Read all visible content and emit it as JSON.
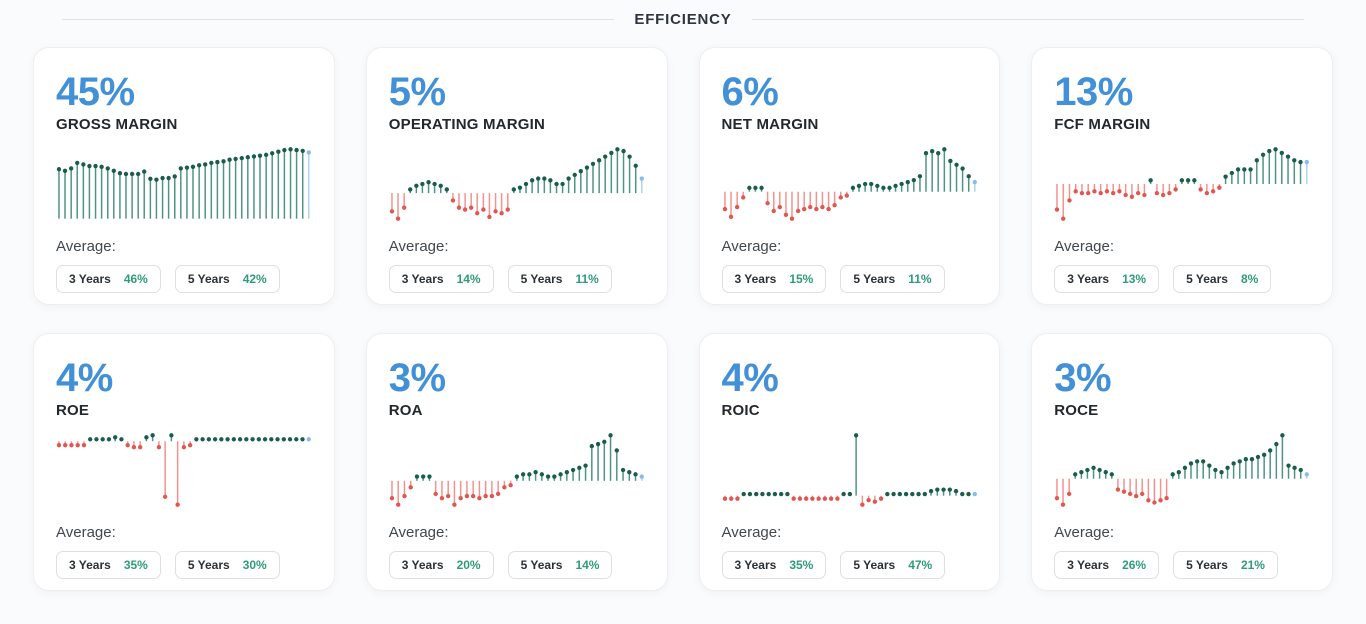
{
  "header": {
    "title": "EFFICIENCY"
  },
  "colors": {
    "accent_blue": "#4291d8",
    "positive_green": "#2e9d76",
    "negative_red": "#e25650",
    "latest_blue": "#85bdec",
    "spark": {
      "green": {
        "dot": "#1a5d4d",
        "stem": "#4f9383"
      },
      "red": {
        "dot": "#e25650",
        "stem": "#f2928e"
      },
      "blue": {
        "dot": "#85bdec",
        "stem": "#afd3f2"
      }
    }
  },
  "cards": [
    {
      "value": "45%",
      "label": "GROSS MARGIN",
      "average_label": "Average:",
      "averages": [
        {
          "label": "3 Years",
          "value": "46%"
        },
        {
          "label": "5 Years",
          "value": "42%"
        }
      ]
    },
    {
      "value": "5%",
      "label": "OPERATING MARGIN",
      "average_label": "Average:",
      "averages": [
        {
          "label": "3 Years",
          "value": "14%"
        },
        {
          "label": "5 Years",
          "value": "11%"
        }
      ]
    },
    {
      "value": "6%",
      "label": "NET MARGIN",
      "average_label": "Average:",
      "averages": [
        {
          "label": "3 Years",
          "value": "15%"
        },
        {
          "label": "5 Years",
          "value": "11%"
        }
      ]
    },
    {
      "value": "13%",
      "label": "FCF MARGIN",
      "average_label": "Average:",
      "averages": [
        {
          "label": "3 Years",
          "value": "13%"
        },
        {
          "label": "5 Years",
          "value": "8%"
        }
      ]
    },
    {
      "value": "4%",
      "label": "ROE",
      "average_label": "Average:",
      "averages": [
        {
          "label": "3 Years",
          "value": "35%"
        },
        {
          "label": "5 Years",
          "value": "30%"
        }
      ]
    },
    {
      "value": "3%",
      "label": "ROA",
      "average_label": "Average:",
      "averages": [
        {
          "label": "3 Years",
          "value": "20%"
        },
        {
          "label": "5 Years",
          "value": "14%"
        }
      ]
    },
    {
      "value": "4%",
      "label": "ROIC",
      "average_label": "Average:",
      "averages": [
        {
          "label": "3 Years",
          "value": "35%"
        },
        {
          "label": "5 Years",
          "value": "47%"
        }
      ]
    },
    {
      "value": "3%",
      "label": "ROCE",
      "average_label": "Average:",
      "averages": [
        {
          "label": "3 Years",
          "value": "26%"
        },
        {
          "label": "5 Years",
          "value": "21%"
        }
      ]
    }
  ],
  "chart_data": [
    {
      "type": "stem",
      "title": "GROSS MARGIN history (lollipop sparkline, latest point blue)",
      "values": [
        62,
        60,
        63,
        70,
        68,
        66,
        66,
        65,
        63,
        60,
        57,
        56,
        56,
        56,
        59,
        50,
        49,
        51,
        51,
        53,
        63,
        64,
        65,
        67,
        68,
        70,
        71,
        72,
        74,
        75,
        76,
        77,
        78,
        79,
        80,
        82,
        84,
        86,
        87,
        86,
        85,
        83
      ]
    },
    {
      "type": "stem",
      "title": "OPERATING MARGIN history (green positive, red negative, latest blue)",
      "values": [
        -10,
        -14,
        -8,
        2,
        4,
        5,
        6,
        5,
        4,
        2,
        -4,
        -8,
        -9,
        -8,
        -11,
        -9,
        -13,
        -10,
        -11,
        -9,
        2,
        3,
        5,
        7,
        8,
        8,
        7,
        5,
        5,
        8,
        10,
        12,
        14,
        16,
        18,
        20,
        22,
        24,
        23,
        20,
        15,
        8
      ]
    },
    {
      "type": "stem",
      "title": "NET MARGIN history (green positive, red negative, latest blue)",
      "values": [
        -9,
        -13,
        -8,
        -3,
        2,
        2,
        2,
        -6,
        -10,
        -8,
        -12,
        -14,
        -10,
        -9,
        -8,
        -9,
        -8,
        -9,
        -7,
        -3,
        -2,
        2,
        3,
        4,
        4,
        3,
        2,
        2,
        3,
        4,
        5,
        6,
        8,
        20,
        21,
        20,
        22,
        16,
        14,
        12,
        8,
        5
      ]
    },
    {
      "type": "stem",
      "title": "FCF MARGIN history (green positive, red negative, latest blue)",
      "values": [
        -14,
        -19,
        -9,
        -4,
        -5,
        -5,
        -4,
        -5,
        -4,
        -5,
        -4,
        -6,
        -7,
        -5,
        -6,
        2,
        -5,
        -6,
        -5,
        -3,
        2,
        2,
        2,
        -3,
        -5,
        -4,
        -2,
        4,
        6,
        8,
        8,
        8,
        13,
        16,
        18,
        19,
        17,
        15,
        13,
        12,
        12
      ]
    },
    {
      "type": "stem",
      "title": "ROE history (two deep negative spikes, latest blue)",
      "values": [
        -2,
        -2,
        -2,
        -2,
        -2,
        1,
        1,
        1,
        1,
        2,
        1,
        -2,
        -3,
        -3,
        2,
        3,
        -3,
        -28,
        3,
        -32,
        -3,
        -2,
        1,
        1,
        1,
        1,
        1,
        1,
        1,
        1,
        1,
        1,
        1,
        1,
        1,
        1,
        1,
        1,
        1,
        1,
        1
      ]
    },
    {
      "type": "stem",
      "title": "ROA history (green positive, red negative, latest blue)",
      "values": [
        -8,
        -11,
        -7,
        -3,
        2,
        2,
        2,
        -6,
        -8,
        -7,
        -11,
        -8,
        -7,
        -7,
        -8,
        -7,
        -7,
        -6,
        -3,
        -2,
        2,
        3,
        3,
        4,
        3,
        2,
        2,
        3,
        4,
        5,
        6,
        7,
        16,
        17,
        18,
        21,
        14,
        5,
        4,
        3,
        2
      ]
    },
    {
      "type": "stem",
      "title": "ROIC history (one tall positive spike, latest blue)",
      "values": [
        -2,
        -2,
        -2,
        1,
        1,
        1,
        1,
        1,
        1,
        1,
        1,
        -2,
        -2,
        -2,
        -2,
        -2,
        -2,
        -2,
        -2,
        1,
        1,
        40,
        -6,
        -3,
        -4,
        -2,
        1,
        1,
        1,
        1,
        1,
        1,
        1,
        3,
        4,
        4,
        4,
        3,
        1,
        1,
        1
      ]
    },
    {
      "type": "stem",
      "title": "ROCE history (green positive, red negative, latest blue)",
      "values": [
        -9,
        -12,
        -7,
        2,
        3,
        4,
        5,
        4,
        3,
        2,
        -5,
        -6,
        -7,
        -8,
        -7,
        -10,
        -11,
        -10,
        -9,
        2,
        3,
        5,
        7,
        8,
        8,
        6,
        4,
        3,
        5,
        7,
        8,
        9,
        9,
        10,
        11,
        13,
        16,
        20,
        6,
        5,
        4,
        2
      ]
    }
  ]
}
